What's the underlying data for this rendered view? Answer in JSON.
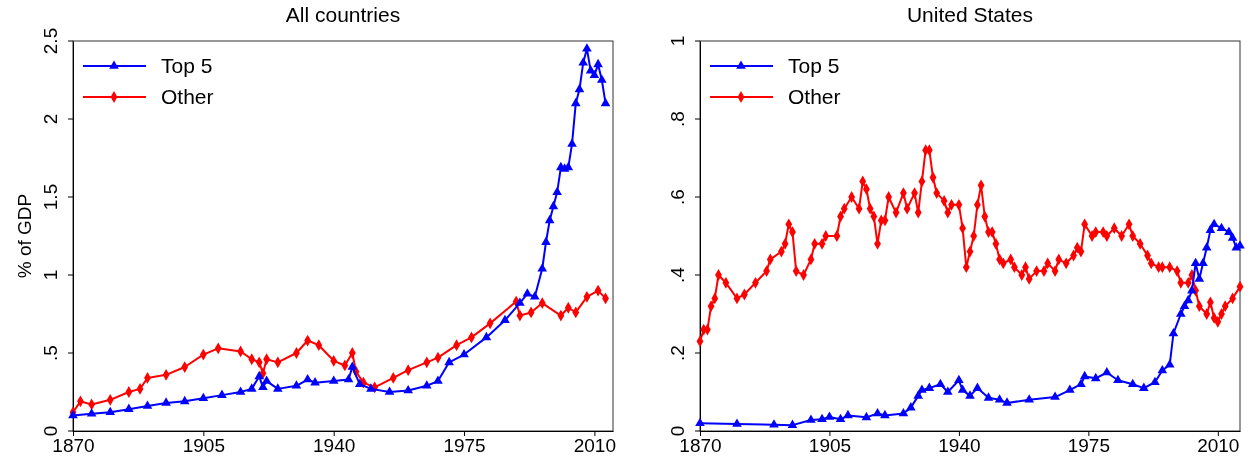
{
  "chart_data": [
    {
      "type": "line",
      "title": "All countries",
      "ylabel": "% of GDP",
      "xlim": [
        1870,
        2015
      ],
      "xticks": [
        1870,
        1905,
        1940,
        1975,
        2010
      ],
      "ylim": [
        0,
        2.5
      ],
      "yticks": [
        0,
        {
          "value": 0.5,
          "label": ".5"
        },
        1,
        1.5,
        2,
        2.5
      ],
      "legend": "top left",
      "grid": false,
      "series": [
        {
          "name": "Top 5",
          "color": "#0000ff",
          "marker": "triangle",
          "x": [
            1870,
            1875,
            1880,
            1885,
            1890,
            1895,
            1900,
            1905,
            1910,
            1915,
            1918,
            1920,
            1921,
            1922,
            1925,
            1930,
            1933,
            1935,
            1940,
            1944,
            1945,
            1947,
            1950,
            1955,
            1960,
            1965,
            1968,
            1971,
            1975,
            1981,
            1986,
            1990,
            1992,
            1994,
            1996,
            1997,
            1998,
            1999,
            2000,
            2001,
            2002,
            2003,
            2004,
            2005,
            2006,
            2007,
            2008,
            2009,
            2010,
            2011,
            2012,
            2013
          ],
          "values": [
            0.1,
            0.11,
            0.12,
            0.14,
            0.16,
            0.18,
            0.19,
            0.21,
            0.23,
            0.25,
            0.27,
            0.35,
            0.28,
            0.32,
            0.27,
            0.29,
            0.33,
            0.31,
            0.32,
            0.33,
            0.41,
            0.3,
            0.27,
            0.25,
            0.26,
            0.29,
            0.32,
            0.44,
            0.49,
            0.6,
            0.71,
            0.82,
            0.88,
            0.86,
            1.04,
            1.21,
            1.35,
            1.44,
            1.53,
            1.69,
            1.68,
            1.69,
            1.84,
            2.1,
            2.19,
            2.36,
            2.45,
            2.31,
            2.28,
            2.35,
            2.25,
            2.1
          ]
        },
        {
          "name": "Other",
          "color": "#ff0000",
          "marker": "diamond",
          "x": [
            1870,
            1872,
            1875,
            1880,
            1885,
            1888,
            1890,
            1895,
            1900,
            1905,
            1909,
            1915,
            1918,
            1920,
            1921,
            1922,
            1925,
            1930,
            1933,
            1936,
            1940,
            1943,
            1945,
            1946,
            1948,
            1951,
            1956,
            1960,
            1965,
            1968,
            1973,
            1977,
            1982,
            1989,
            1990,
            1993,
            1996,
            2001,
            2003,
            2005,
            2008,
            2011,
            2013
          ],
          "values": [
            0.12,
            0.19,
            0.17,
            0.2,
            0.25,
            0.27,
            0.34,
            0.36,
            0.41,
            0.49,
            0.53,
            0.51,
            0.46,
            0.44,
            0.37,
            0.46,
            0.44,
            0.5,
            0.58,
            0.55,
            0.45,
            0.42,
            0.5,
            0.38,
            0.31,
            0.28,
            0.34,
            0.39,
            0.44,
            0.47,
            0.55,
            0.6,
            0.69,
            0.83,
            0.74,
            0.76,
            0.82,
            0.74,
            0.79,
            0.76,
            0.86,
            0.9,
            0.85
          ]
        }
      ]
    },
    {
      "type": "line",
      "title": "United States",
      "xlim": [
        1870,
        2016
      ],
      "xticks": [
        1870,
        1905,
        1940,
        1975,
        2010
      ],
      "ylim": [
        0,
        1
      ],
      "yticks": [
        0,
        {
          "value": 0.2,
          "label": ".2"
        },
        {
          "value": 0.4,
          "label": ".4"
        },
        {
          "value": 0.6,
          "label": ".6"
        },
        {
          "value": 0.8,
          "label": ".8"
        },
        1
      ],
      "legend": "top left",
      "grid": false,
      "series": [
        {
          "name": "Top 5",
          "color": "#0000ff",
          "marker": "triangle",
          "x": [
            1870,
            1880,
            1890,
            1895,
            1900,
            1903,
            1905,
            1908,
            1910,
            1915,
            1918,
            1920,
            1925,
            1927,
            1929,
            1930,
            1932,
            1935,
            1937,
            1940,
            1941,
            1943,
            1945,
            1948,
            1951,
            1953,
            1959,
            1966,
            1970,
            1973,
            1974,
            1977,
            1980,
            1983,
            1987,
            1990,
            1993,
            1995,
            1997,
            1998,
            2000,
            2001,
            2002,
            2003,
            2004,
            2005,
            2006,
            2007,
            2008,
            2009,
            2011,
            2013,
            2014,
            2015,
            2016
          ],
          "values": [
            0.02,
            0.018,
            0.016,
            0.015,
            0.028,
            0.03,
            0.036,
            0.03,
            0.04,
            0.035,
            0.045,
            0.04,
            0.045,
            0.06,
            0.09,
            0.105,
            0.11,
            0.12,
            0.1,
            0.13,
            0.105,
            0.09,
            0.11,
            0.085,
            0.08,
            0.072,
            0.08,
            0.087,
            0.105,
            0.12,
            0.14,
            0.135,
            0.15,
            0.13,
            0.12,
            0.11,
            0.125,
            0.155,
            0.17,
            0.25,
            0.3,
            0.32,
            0.335,
            0.36,
            0.43,
            0.39,
            0.43,
            0.47,
            0.515,
            0.53,
            0.52,
            0.51,
            0.495,
            0.47,
            0.475
          ]
        },
        {
          "name": "Other",
          "color": "#ff0000",
          "marker": "diamond",
          "x": [
            1870,
            1871,
            1872,
            1873,
            1874,
            1875,
            1877,
            1880,
            1882,
            1885,
            1888,
            1889,
            1892,
            1893,
            1894,
            1895,
            1896,
            1898,
            1900,
            1901,
            1903,
            1904,
            1907,
            1908,
            1909,
            1911,
            1913,
            1914,
            1915,
            1916,
            1917,
            1918,
            1919,
            1920,
            1921,
            1923,
            1925,
            1926,
            1928,
            1929,
            1930,
            1931,
            1932,
            1933,
            1934,
            1936,
            1937,
            1938,
            1940,
            1941,
            1942,
            1943,
            1944,
            1945,
            1946,
            1947,
            1948,
            1949,
            1950,
            1951,
            1952,
            1954,
            1955,
            1957,
            1958,
            1959,
            1961,
            1963,
            1964,
            1966,
            1967,
            1969,
            1971,
            1972,
            1973,
            1974,
            1976,
            1977,
            1979,
            1980,
            1982,
            1984,
            1986,
            1987,
            1989,
            1991,
            1992,
            1994,
            1995,
            1997,
            1999,
            2000,
            2002,
            2003,
            2004,
            2005,
            2007,
            2008,
            2009,
            2010,
            2011,
            2012,
            2014,
            2016
          ],
          "values": [
            0.23,
            0.26,
            0.26,
            0.32,
            0.34,
            0.4,
            0.38,
            0.34,
            0.35,
            0.38,
            0.41,
            0.44,
            0.46,
            0.48,
            0.53,
            0.51,
            0.41,
            0.4,
            0.44,
            0.48,
            0.48,
            0.5,
            0.5,
            0.55,
            0.57,
            0.6,
            0.57,
            0.64,
            0.62,
            0.57,
            0.55,
            0.48,
            0.54,
            0.54,
            0.6,
            0.56,
            0.61,
            0.57,
            0.61,
            0.56,
            0.64,
            0.72,
            0.72,
            0.65,
            0.61,
            0.59,
            0.56,
            0.58,
            0.58,
            0.52,
            0.42,
            0.46,
            0.5,
            0.58,
            0.63,
            0.55,
            0.51,
            0.51,
            0.48,
            0.44,
            0.43,
            0.44,
            0.42,
            0.4,
            0.42,
            0.39,
            0.41,
            0.41,
            0.43,
            0.41,
            0.44,
            0.43,
            0.45,
            0.47,
            0.46,
            0.53,
            0.5,
            0.51,
            0.51,
            0.5,
            0.52,
            0.5,
            0.53,
            0.5,
            0.48,
            0.45,
            0.43,
            0.42,
            0.42,
            0.42,
            0.41,
            0.38,
            0.38,
            0.4,
            0.36,
            0.32,
            0.3,
            0.33,
            0.29,
            0.28,
            0.3,
            0.32,
            0.34,
            0.37
          ]
        }
      ]
    }
  ]
}
